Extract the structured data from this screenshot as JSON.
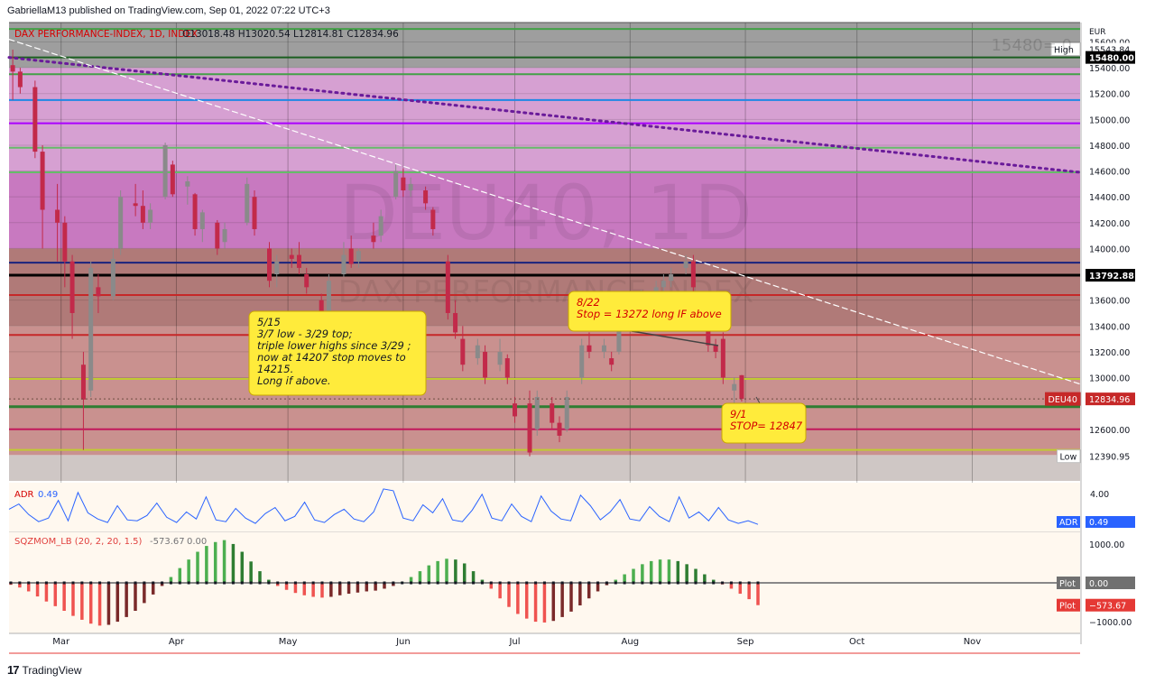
{
  "publisher_line": "GabriellaM13 published on TradingView.com, Sep 01, 2022 07:22 UTC+3",
  "footer": {
    "logo_glyph": "17",
    "brand": "TradingView"
  },
  "colors": {
    "background": "#ffffff",
    "up_candle": "#8a8a8a",
    "down_candle": "#c22a4a",
    "callout_fill": "#ffeb3b",
    "callout_text": "#131722",
    "callout_text_alt": "#d50000",
    "adr_line": "#2962ff",
    "mom_up_strong": "#4caf50",
    "mom_up_weak": "#2e7d32",
    "mom_down_strong": "#ef5350",
    "mom_down_weak": "#7a2a2a"
  },
  "chart_data": {
    "type": "candlestick",
    "symbol_line": {
      "name": "DAX PERFORMANCE-INDEX, 1D, INDEX",
      "ohlc": "O13018.48 H13020.54 L12814.81 C12834.96"
    },
    "watermark": {
      "ticker": "DEU40, 1D",
      "name": "DAX PERFORMANCE-INDEX"
    },
    "corner_label": "15480= 0",
    "currency": "EUR",
    "y_range": [
      12200,
      15750
    ],
    "y_ticks": [
      15600,
      15400,
      15200,
      15000,
      14800,
      14600,
      14400,
      14200,
      14000,
      13600,
      13400,
      13200,
      13000,
      12600
    ],
    "y_tick_labels": [
      "15600.00",
      "15400.00",
      "15200.00",
      "15000.00",
      "14800.00",
      "14600.00",
      "14400.00",
      "14200.00",
      "14000.00",
      "13600.00",
      "13400.00",
      "13200.00",
      "13000.00",
      "12600.00"
    ],
    "x_range": [
      "2022-02-15",
      "2022-11-30"
    ],
    "x_ticks": [
      {
        "label": "Mar",
        "date": "2022-03-01"
      },
      {
        "label": "Apr",
        "date": "2022-04-01"
      },
      {
        "label": "May",
        "date": "2022-05-01"
      },
      {
        "label": "Jun",
        "date": "2022-06-01"
      },
      {
        "label": "Jul",
        "date": "2022-07-01"
      },
      {
        "label": "Aug",
        "date": "2022-08-01"
      },
      {
        "label": "Sep",
        "date": "2022-09-01"
      },
      {
        "label": "Oct",
        "date": "2022-10-01"
      },
      {
        "label": "Nov",
        "date": "2022-11-01"
      }
    ],
    "price_badges": [
      {
        "label": "High",
        "value": "15543.84",
        "price": 15543.84,
        "color": "#ffffff",
        "text": "#131722"
      },
      {
        "label": "",
        "value": "15480.00",
        "price": 15480,
        "color": "#000000",
        "text": "#ffffff"
      },
      {
        "label": "",
        "value": "13792.88",
        "price": 13792.88,
        "color": "#000000",
        "text": "#ffffff"
      },
      {
        "label": "DEU40",
        "value": "12834.96",
        "price": 12834.96,
        "color": "#c62828",
        "text": "#ffffff"
      },
      {
        "label": "Low",
        "value": "12390.95",
        "price": 12390.95,
        "color": "#ffffff",
        "text": "#131722"
      }
    ],
    "zones": [
      {
        "from": 15400,
        "to": 15750,
        "color": "#9e9e9e"
      },
      {
        "from": 14600,
        "to": 15400,
        "color": "#d6a0d2"
      },
      {
        "from": 14000,
        "to": 14600,
        "color": "#c879c0"
      },
      {
        "from": 13400,
        "to": 14000,
        "color": "#b07a78"
      },
      {
        "from": 12400,
        "to": 13400,
        "color": "#c9918f"
      },
      {
        "from": 12200,
        "to": 12400,
        "color": "#cfc7c5"
      }
    ],
    "levels": [
      {
        "price": 15700,
        "color": "#43a047",
        "width": 2
      },
      {
        "price": 15480,
        "color": "#1b5e20",
        "width": 2
      },
      {
        "price": 15350,
        "color": "#43a047",
        "width": 2
      },
      {
        "price": 15150,
        "color": "#1e88e5",
        "width": 2
      },
      {
        "price": 14970,
        "color": "#aa00ff",
        "width": 2
      },
      {
        "price": 14780,
        "color": "#66bb6a",
        "width": 2
      },
      {
        "price": 14590,
        "color": "#66bb6a",
        "width": 2
      },
      {
        "price": 13890,
        "color": "#1a237e",
        "width": 2
      },
      {
        "price": 13792.88,
        "color": "#000000",
        "width": 3
      },
      {
        "price": 13640,
        "color": "#c62828",
        "width": 2
      },
      {
        "price": 13330,
        "color": "#c62828",
        "width": 2
      },
      {
        "price": 12990,
        "color": "#c0ca33",
        "width": 2
      },
      {
        "price": 12775,
        "color": "#2e7d32",
        "width": 3
      },
      {
        "price": 12600,
        "color": "#c2185b",
        "width": 2
      },
      {
        "price": 12440,
        "color": "#c0ca33",
        "width": 2
      }
    ],
    "trendlines": [
      {
        "style": "dotted",
        "color": "#6a1b9a",
        "from": {
          "date": "2022-02-15",
          "price": 15480
        },
        "to": {
          "date": "2022-11-30",
          "price": 14590
        }
      },
      {
        "style": "dashed",
        "color": "#ffffff",
        "from": {
          "date": "2022-02-15",
          "price": 15620
        },
        "to": {
          "date": "2022-11-30",
          "price": 12950
        }
      }
    ],
    "candles": [
      {
        "date": "2022-02-16",
        "open": 15420,
        "high": 15540,
        "low": 15150,
        "close": 15370
      },
      {
        "date": "2022-02-18",
        "open": 15370,
        "high": 15400,
        "low": 15200,
        "close": 15250
      },
      {
        "date": "2022-02-22",
        "open": 15250,
        "high": 15300,
        "low": 14700,
        "close": 14750
      },
      {
        "date": "2022-02-24",
        "open": 14750,
        "high": 14800,
        "low": 14000,
        "close": 14300
      },
      {
        "date": "2022-02-28",
        "open": 14300,
        "high": 14500,
        "low": 13900,
        "close": 14200
      },
      {
        "date": "2022-03-02",
        "open": 14200,
        "high": 14250,
        "low": 13700,
        "close": 13900
      },
      {
        "date": "2022-03-04",
        "open": 13900,
        "high": 13950,
        "low": 13300,
        "close": 13500
      },
      {
        "date": "2022-03-07",
        "open": 13100,
        "high": 13200,
        "low": 12440,
        "close": 12830
      },
      {
        "date": "2022-03-09",
        "open": 12900,
        "high": 13900,
        "low": 12850,
        "close": 13850
      },
      {
        "date": "2022-03-11",
        "open": 13700,
        "high": 13800,
        "low": 13500,
        "close": 13630
      },
      {
        "date": "2022-03-15",
        "open": 13630,
        "high": 14000,
        "low": 13600,
        "close": 13920
      },
      {
        "date": "2022-03-17",
        "open": 14000,
        "high": 14450,
        "low": 13950,
        "close": 14400
      },
      {
        "date": "2022-03-21",
        "open": 14350,
        "high": 14500,
        "low": 14250,
        "close": 14330
      },
      {
        "date": "2022-03-23",
        "open": 14330,
        "high": 14450,
        "low": 14150,
        "close": 14200
      },
      {
        "date": "2022-03-25",
        "open": 14200,
        "high": 14350,
        "low": 14150,
        "close": 14300
      },
      {
        "date": "2022-03-29",
        "open": 14400,
        "high": 14820,
        "low": 14380,
        "close": 14800
      },
      {
        "date": "2022-03-31",
        "open": 14650,
        "high": 14680,
        "low": 14400,
        "close": 14420
      },
      {
        "date": "2022-04-04",
        "open": 14480,
        "high": 14560,
        "low": 14340,
        "close": 14520
      },
      {
        "date": "2022-04-06",
        "open": 14420,
        "high": 14430,
        "low": 14100,
        "close": 14150
      },
      {
        "date": "2022-04-08",
        "open": 14150,
        "high": 14300,
        "low": 14050,
        "close": 14280
      },
      {
        "date": "2022-04-12",
        "open": 14200,
        "high": 14220,
        "low": 13950,
        "close": 14000
      },
      {
        "date": "2022-04-14",
        "open": 14050,
        "high": 14200,
        "low": 14000,
        "close": 14150
      },
      {
        "date": "2022-04-20",
        "open": 14200,
        "high": 14550,
        "low": 14180,
        "close": 14500
      },
      {
        "date": "2022-04-22",
        "open": 14400,
        "high": 14450,
        "low": 14100,
        "close": 14150
      },
      {
        "date": "2022-04-26",
        "open": 14000,
        "high": 14050,
        "low": 13700,
        "close": 13750
      },
      {
        "date": "2022-04-28",
        "open": 13800,
        "high": 13950,
        "low": 13700,
        "close": 13900
      },
      {
        "date": "2022-05-02",
        "open": 13950,
        "high": 14000,
        "low": 13850,
        "close": 13920
      },
      {
        "date": "2022-05-04",
        "open": 13950,
        "high": 14050,
        "low": 13800,
        "close": 13850
      },
      {
        "date": "2022-05-06",
        "open": 13800,
        "high": 13850,
        "low": 13650,
        "close": 13700
      },
      {
        "date": "2022-05-10",
        "open": 13600,
        "high": 13650,
        "low": 13400,
        "close": 13450
      },
      {
        "date": "2022-05-12",
        "open": 13450,
        "high": 13800,
        "low": 13400,
        "close": 13750
      },
      {
        "date": "2022-05-16",
        "open": 13800,
        "high": 14050,
        "low": 13780,
        "close": 13950
      },
      {
        "date": "2022-05-18",
        "open": 14000,
        "high": 14100,
        "low": 13850,
        "close": 13880
      },
      {
        "date": "2022-05-20",
        "open": 13900,
        "high": 14000,
        "low": 13850,
        "close": 13980
      },
      {
        "date": "2022-05-24",
        "open": 14100,
        "high": 14200,
        "low": 14000,
        "close": 14050
      },
      {
        "date": "2022-05-26",
        "open": 14100,
        "high": 14300,
        "low": 14050,
        "close": 14250
      },
      {
        "date": "2022-05-30",
        "open": 14400,
        "high": 14650,
        "low": 14380,
        "close": 14600
      },
      {
        "date": "2022-06-01",
        "open": 14550,
        "high": 14620,
        "low": 14400,
        "close": 14450
      },
      {
        "date": "2022-06-03",
        "open": 14450,
        "high": 14550,
        "low": 14400,
        "close": 14500
      },
      {
        "date": "2022-06-07",
        "open": 14450,
        "high": 14480,
        "low": 14300,
        "close": 14350
      },
      {
        "date": "2022-06-09",
        "open": 14300,
        "high": 14320,
        "low": 14100,
        "close": 14150
      },
      {
        "date": "2022-06-13",
        "open": 13900,
        "high": 13950,
        "low": 13450,
        "close": 13500
      },
      {
        "date": "2022-06-15",
        "open": 13500,
        "high": 13600,
        "low": 13300,
        "close": 13350
      },
      {
        "date": "2022-06-17",
        "open": 13300,
        "high": 13400,
        "low": 13050,
        "close": 13100
      },
      {
        "date": "2022-06-21",
        "open": 13150,
        "high": 13300,
        "low": 13100,
        "close": 13250
      },
      {
        "date": "2022-06-23",
        "open": 13200,
        "high": 13250,
        "low": 12950,
        "close": 13000
      },
      {
        "date": "2022-06-27",
        "open": 13100,
        "high": 13300,
        "low": 13050,
        "close": 13200
      },
      {
        "date": "2022-06-29",
        "open": 13150,
        "high": 13180,
        "low": 12950,
        "close": 13000
      },
      {
        "date": "2022-07-01",
        "open": 12800,
        "high": 12850,
        "low": 12650,
        "close": 12700
      },
      {
        "date": "2022-07-05",
        "open": 12800,
        "high": 12900,
        "low": 12390,
        "close": 12420
      },
      {
        "date": "2022-07-07",
        "open": 12600,
        "high": 12900,
        "low": 12550,
        "close": 12850
      },
      {
        "date": "2022-07-11",
        "open": 12800,
        "high": 12850,
        "low": 12600,
        "close": 12650
      },
      {
        "date": "2022-07-13",
        "open": 12650,
        "high": 12700,
        "low": 12500,
        "close": 12550
      },
      {
        "date": "2022-07-15",
        "open": 12600,
        "high": 12900,
        "low": 12580,
        "close": 12850
      },
      {
        "date": "2022-07-19",
        "open": 13000,
        "high": 13300,
        "low": 12950,
        "close": 13250
      },
      {
        "date": "2022-07-21",
        "open": 13250,
        "high": 13350,
        "low": 13150,
        "close": 13200
      },
      {
        "date": "2022-07-25",
        "open": 13200,
        "high": 13300,
        "low": 13150,
        "close": 13250
      },
      {
        "date": "2022-07-27",
        "open": 13150,
        "high": 13200,
        "low": 13050,
        "close": 13100
      },
      {
        "date": "2022-07-29",
        "open": 13200,
        "high": 13500,
        "low": 13180,
        "close": 13450
      },
      {
        "date": "2022-08-02",
        "open": 13450,
        "high": 13600,
        "low": 13400,
        "close": 13550
      },
      {
        "date": "2022-08-04",
        "open": 13500,
        "high": 13680,
        "low": 13450,
        "close": 13650
      },
      {
        "date": "2022-08-08",
        "open": 13650,
        "high": 13750,
        "low": 13600,
        "close": 13700
      },
      {
        "date": "2022-08-10",
        "open": 13700,
        "high": 13800,
        "low": 13650,
        "close": 13750
      },
      {
        "date": "2022-08-12",
        "open": 13750,
        "high": 13850,
        "low": 13700,
        "close": 13800
      },
      {
        "date": "2022-08-16",
        "open": 13850,
        "high": 13950,
        "low": 13800,
        "close": 13900
      },
      {
        "date": "2022-08-18",
        "open": 13900,
        "high": 13950,
        "low": 13650,
        "close": 13700
      },
      {
        "date": "2022-08-22",
        "open": 13500,
        "high": 13550,
        "low": 13200,
        "close": 13250
      },
      {
        "date": "2022-08-24",
        "open": 13250,
        "high": 13300,
        "low": 13150,
        "close": 13200
      },
      {
        "date": "2022-08-26",
        "open": 13300,
        "high": 13350,
        "low": 12950,
        "close": 13000
      },
      {
        "date": "2022-08-29",
        "open": 12900,
        "high": 13000,
        "low": 12800,
        "close": 12950
      },
      {
        "date": "2022-08-31",
        "open": 13018.48,
        "high": 13020.54,
        "low": 12814.81,
        "close": 12834.96
      }
    ],
    "annotations": [
      {
        "id": "note-515",
        "text_color": "#131722",
        "lines": [
          "5/15",
          "3/7 low - 3/29 top;",
          "triple lower highs since 3/29 ;",
          " now at 14207 stop moves to",
          "  14215.",
          " Long if above."
        ]
      },
      {
        "id": "note-822",
        "text_color": "#d50000",
        "lines": [
          "8/22",
          "Stop = 13272 long IF above"
        ]
      },
      {
        "id": "note-91",
        "text_color": "#d50000",
        "lines": [
          "9/1",
          "STOP= 12847"
        ]
      }
    ],
    "adr_panel": {
      "label": "ADR",
      "value": "0.49",
      "badge": "0.49",
      "y_range": [
        0,
        5
      ],
      "y_tick_labels": [
        "4.00"
      ],
      "y_ticks": [
        4
      ],
      "values": [
        2.2,
        2.8,
        1.6,
        0.8,
        1.2,
        3.2,
        0.9,
        4.1,
        1.8,
        1.1,
        0.7,
        2.6,
        1.0,
        0.9,
        1.5,
        2.9,
        1.3,
        0.7,
        1.9,
        1.1,
        3.6,
        1.0,
        0.8,
        2.3,
        1.2,
        0.6,
        1.7,
        2.4,
        0.9,
        1.4,
        3.0,
        1.0,
        0.7,
        1.6,
        2.2,
        1.1,
        0.8,
        1.9,
        4.5,
        4.3,
        1.2,
        0.9,
        2.7,
        1.8,
        3.4,
        1.0,
        0.8,
        2.1,
        3.9,
        1.2,
        0.9,
        2.8,
        1.4,
        0.8,
        3.7,
        2.0,
        1.1,
        0.9,
        3.8,
        2.6,
        1.0,
        1.9,
        3.3,
        1.1,
        0.9,
        2.5,
        1.4,
        0.8,
        3.6,
        1.2,
        1.9,
        0.9,
        2.4,
        1.0,
        0.6,
        0.9,
        0.49
      ]
    },
    "momentum_panel": {
      "label": "SQZMOM_LB (20, 2, 20, 1.5)",
      "value": "-573.67",
      "value2": "0.00",
      "y_range": [
        -1300,
        1300
      ],
      "y_ticks": [
        1000,
        -1000
      ],
      "y_tick_labels": [
        "1000.00",
        "−1000.00"
      ],
      "badges": [
        {
          "label": "Plot",
          "value": "0.00",
          "color": "#707070",
          "price": 0
        },
        {
          "label": "Plot",
          "value": "−573.67",
          "color": "#e53935",
          "price": -573.67
        }
      ],
      "values": [
        -50,
        -120,
        -220,
        -350,
        -480,
        -600,
        -720,
        -850,
        -950,
        -1050,
        -1100,
        -1080,
        -1000,
        -880,
        -720,
        -520,
        -300,
        -80,
        150,
        380,
        600,
        800,
        950,
        1050,
        1100,
        1000,
        800,
        550,
        300,
        80,
        -80,
        -180,
        -260,
        -320,
        -360,
        -380,
        -360,
        -320,
        -280,
        -250,
        -220,
        -200,
        -150,
        -80,
        20,
        150,
        300,
        450,
        560,
        620,
        600,
        500,
        300,
        80,
        -150,
        -400,
        -620,
        -800,
        -920,
        -1000,
        -1020,
        -980,
        -880,
        -740,
        -580,
        -400,
        -220,
        -60,
        80,
        220,
        360,
        480,
        560,
        600,
        600,
        560,
        480,
        360,
        220,
        80,
        -40,
        -150,
        -280,
        -420,
        -573.67
      ]
    }
  }
}
